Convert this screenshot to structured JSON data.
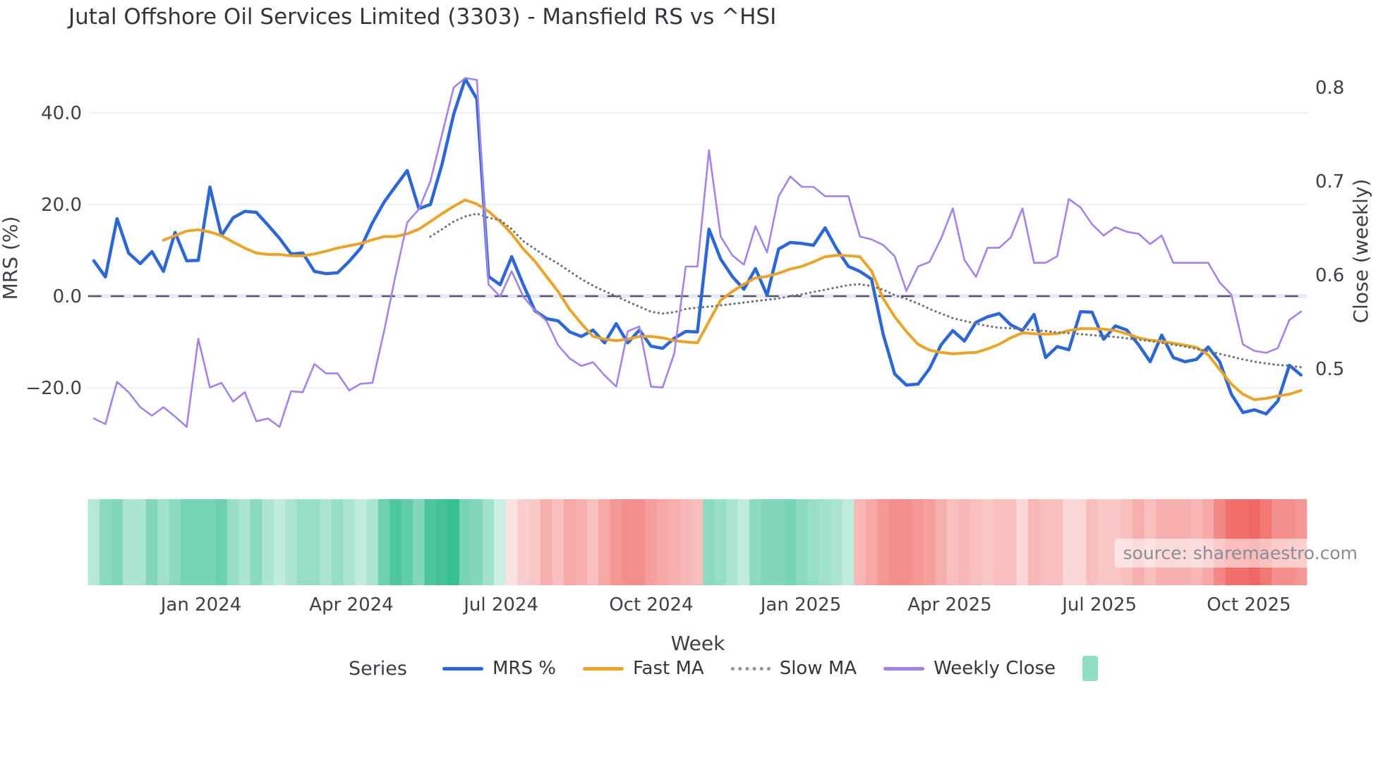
{
  "title": "Jutal Offshore Oil Services Limited (3303) - Mansfield RS vs ^HSI",
  "source": "source: sharemaestro.com",
  "colors": {
    "mrs": "#2c67d6",
    "fast_ma": "#eaa42c",
    "slow_ma": "#6f737b",
    "weekly_close": "#a583e6",
    "zero_dash": "#4a4f5c",
    "zero_band": "#e8eaf6",
    "grid": "#edeff6",
    "heat_green_dark": "#1fb586",
    "heat_green_light": "#eafaf4",
    "heat_red_dark": "#ee5350",
    "heat_red_light": "#fdeeee",
    "legend_patch": "#90ddc1"
  },
  "legend": {
    "series_label": "Series",
    "items": [
      {
        "label": "MRS %",
        "type": "line",
        "color": "#2c67d6"
      },
      {
        "label": "Fast MA",
        "type": "line",
        "color": "#eaa42c"
      },
      {
        "label": "Slow MA",
        "type": "dotted",
        "color": "#8d929b"
      },
      {
        "label": "Weekly Close",
        "type": "line",
        "color": "#a583e6"
      },
      {
        "label": "",
        "type": "patch",
        "color": "#90ddc1"
      }
    ]
  },
  "chart_data": {
    "type": "line",
    "title": "Jutal Offshore Oil Services Limited (3303) - Mansfield RS vs ^HSI",
    "xlabel": "Week",
    "n_weeks": 105,
    "x_axis": {
      "title": "Week",
      "tick_labels": [
        "Jan 2024",
        "Apr 2024",
        "Jul 2024",
        "Oct 2024",
        "Jan 2025",
        "Apr 2025",
        "Jul 2025",
        "Oct 2025"
      ],
      "tick_week_positions": [
        9.24,
        22.19,
        35.08,
        48.02,
        60.91,
        73.74,
        86.63,
        99.51
      ]
    },
    "left_axis": {
      "title": "MRS (%)",
      "tick_values": [
        40,
        20,
        0,
        -20
      ],
      "tick_labels": [
        "40.0",
        "20.0",
        "0.0",
        "−20.0"
      ],
      "zero_dashed_line": true,
      "range_hint": [
        -30,
        50
      ]
    },
    "right_axis": {
      "title": "Close (weekly)",
      "tick_values": [
        0.8,
        0.7,
        0.6,
        0.5
      ],
      "tick_labels": [
        "0.8",
        "0.7",
        "0.6",
        "0.5"
      ]
    },
    "series": [
      {
        "name": "MRS %",
        "axis": "left",
        "style": "solid",
        "color": "#2c67d6",
        "width": 4.5,
        "values": [
          7.7,
          4.2,
          16.9,
          9.4,
          7.1,
          9.7,
          5.4,
          13.9,
          7.7,
          7.8,
          23.8,
          13.2,
          17.1,
          18.5,
          18.3,
          15.5,
          12.6,
          9.2,
          9.4,
          5.4,
          4.9,
          5.1,
          7.6,
          10.5,
          16.0,
          20.5,
          24.0,
          27.4,
          19.1,
          20.0,
          28.8,
          39.7,
          47.4,
          43.0,
          4.3,
          2.5,
          8.6,
          2.5,
          -3.2,
          -4.9,
          -5.4,
          -7.8,
          -8.8,
          -7.4,
          -10.2,
          -6.0,
          -10.2,
          -7.4,
          -10.9,
          -11.4,
          -9.2,
          -7.7,
          -7.8,
          14.6,
          8.1,
          4.3,
          1.5,
          6.0,
          0.2,
          10.3,
          11.7,
          11.5,
          11.1,
          14.9,
          10.3,
          6.5,
          5.4,
          3.7,
          -8.3,
          -17.0,
          -19.4,
          -19.2,
          -15.8,
          -10.6,
          -7.5,
          -9.8,
          -5.7,
          -4.5,
          -3.8,
          -6.3,
          -7.5,
          -4.0,
          -13.4,
          -11.0,
          -11.7,
          -3.4,
          -3.5,
          -9.4,
          -6.5,
          -7.4,
          -10.6,
          -14.3,
          -8.5,
          -13.4,
          -14.3,
          -13.8,
          -11.1,
          -14.3,
          -21.4,
          -25.4,
          -24.8,
          -25.7,
          -22.9,
          -15.1,
          -17.2
        ]
      },
      {
        "name": "Fast MA",
        "axis": "left",
        "style": "solid",
        "color": "#eaa42c",
        "width": 4,
        "values": [
          null,
          null,
          null,
          null,
          null,
          null,
          12.2,
          13.2,
          14.2,
          14.5,
          14.0,
          13.2,
          11.8,
          10.5,
          9.4,
          9.1,
          9.1,
          8.8,
          8.8,
          9.2,
          9.8,
          10.5,
          11.0,
          11.5,
          12.3,
          13.0,
          13.0,
          13.6,
          14.6,
          16.3,
          18.0,
          19.6,
          21.0,
          20.1,
          18.5,
          16.3,
          13.6,
          10.3,
          7.6,
          4.3,
          1.0,
          -2.9,
          -6.0,
          -8.8,
          -9.4,
          -9.7,
          -9.4,
          -8.8,
          -8.8,
          -9.1,
          -9.7,
          -10.0,
          -10.2,
          -5.5,
          -0.9,
          1.0,
          2.6,
          4.0,
          4.3,
          5.0,
          5.9,
          6.5,
          7.5,
          8.6,
          8.9,
          8.8,
          8.6,
          5.5,
          -0.5,
          -4.5,
          -7.7,
          -10.5,
          -11.8,
          -12.3,
          -12.6,
          -12.4,
          -12.3,
          -11.5,
          -10.5,
          -9.1,
          -8.0,
          -8.2,
          -8.3,
          -8.2,
          -7.5,
          -7.1,
          -7.1,
          -7.2,
          -7.5,
          -8.2,
          -9.1,
          -9.6,
          -9.9,
          -10.3,
          -10.7,
          -11.2,
          -12.8,
          -16.0,
          -19.2,
          -21.4,
          -22.6,
          -22.3,
          -21.8,
          -21.4,
          -20.6
        ]
      },
      {
        "name": "Slow MA",
        "axis": "left",
        "style": "dotted",
        "color": "#6f737b",
        "width": 3.2,
        "values": [
          null,
          null,
          null,
          null,
          null,
          null,
          null,
          null,
          null,
          null,
          null,
          null,
          null,
          null,
          null,
          null,
          null,
          null,
          null,
          null,
          null,
          null,
          null,
          null,
          null,
          null,
          null,
          null,
          null,
          13.0,
          14.6,
          16.3,
          17.4,
          18.0,
          17.1,
          16.6,
          14.6,
          12.0,
          10.3,
          8.6,
          7.1,
          5.4,
          3.7,
          2.3,
          1.1,
          0.0,
          -1.2,
          -2.3,
          -3.4,
          -3.8,
          -3.5,
          -2.8,
          -2.5,
          -2.3,
          -2.0,
          -1.7,
          -1.4,
          -1.1,
          -0.8,
          -0.5,
          0.0,
          0.4,
          0.9,
          1.4,
          1.9,
          2.4,
          2.6,
          2.2,
          1.4,
          0.2,
          -0.6,
          -1.6,
          -2.8,
          -3.8,
          -4.8,
          -5.4,
          -6.0,
          -6.5,
          -6.9,
          -7.0,
          -7.2,
          -7.4,
          -7.6,
          -7.9,
          -8.1,
          -8.3,
          -8.5,
          -8.7,
          -8.9,
          -9.2,
          -9.5,
          -9.8,
          -10.2,
          -10.6,
          -11.0,
          -11.5,
          -12.0,
          -12.6,
          -13.2,
          -13.8,
          -14.3,
          -14.7,
          -15.0,
          -15.2,
          -15.5
        ]
      },
      {
        "name": "Weekly Close",
        "axis": "right",
        "style": "solid",
        "color": "#a583e6",
        "width": 2.6,
        "values": [
          0.447,
          0.441,
          0.486,
          0.475,
          0.459,
          0.45,
          0.459,
          0.449,
          0.438,
          0.532,
          0.48,
          0.485,
          0.465,
          0.475,
          0.444,
          0.447,
          0.438,
          0.476,
          0.475,
          0.505,
          0.495,
          0.495,
          0.477,
          0.484,
          0.485,
          0.54,
          0.6,
          0.656,
          0.67,
          0.7,
          0.75,
          0.8,
          0.81,
          0.808,
          0.59,
          0.577,
          0.604,
          0.577,
          0.562,
          0.551,
          0.525,
          0.511,
          0.503,
          0.507,
          0.493,
          0.481,
          0.54,
          0.545,
          0.481,
          0.48,
          0.516,
          0.609,
          0.609,
          0.733,
          0.641,
          0.621,
          0.611,
          0.652,
          0.624,
          0.684,
          0.705,
          0.694,
          0.694,
          0.684,
          0.684,
          0.684,
          0.641,
          0.638,
          0.632,
          0.62,
          0.583,
          0.609,
          0.614,
          0.639,
          0.671,
          0.616,
          0.598,
          0.629,
          0.629,
          0.64,
          0.671,
          0.613,
          0.613,
          0.62,
          0.681,
          0.672,
          0.654,
          0.642,
          0.651,
          0.646,
          0.644,
          0.633,
          0.642,
          0.613,
          0.613,
          0.613,
          0.613,
          0.592,
          0.579,
          0.526,
          0.519,
          0.517,
          0.522,
          0.552,
          0.561
        ]
      }
    ],
    "heatmap_strip": {
      "description": "weekly relative-strength color strip under chart",
      "cells": [
        [
          "g",
          0.25
        ],
        [
          "g",
          0.45
        ],
        [
          "g",
          0.5
        ],
        [
          "g",
          0.3
        ],
        [
          "g",
          0.3
        ],
        [
          "g",
          0.5
        ],
        [
          "g",
          0.35
        ],
        [
          "g",
          0.45
        ],
        [
          "g",
          0.55
        ],
        [
          "g",
          0.55
        ],
        [
          "g",
          0.55
        ],
        [
          "g",
          0.6
        ],
        [
          "g",
          0.4
        ],
        [
          "g",
          0.3
        ],
        [
          "g",
          0.45
        ],
        [
          "g",
          0.3
        ],
        [
          "g",
          0.2
        ],
        [
          "g",
          0.3
        ],
        [
          "g",
          0.4
        ],
        [
          "g",
          0.4
        ],
        [
          "g",
          0.3
        ],
        [
          "g",
          0.4
        ],
        [
          "g",
          0.3
        ],
        [
          "g",
          0.2
        ],
        [
          "g",
          0.3
        ],
        [
          "g",
          0.6
        ],
        [
          "g",
          0.75
        ],
        [
          "g",
          0.65
        ],
        [
          "g",
          0.5
        ],
        [
          "g",
          0.75
        ],
        [
          "g",
          0.8
        ],
        [
          "g",
          0.85
        ],
        [
          "g",
          0.55
        ],
        [
          "g",
          0.5
        ],
        [
          "g",
          0.35
        ],
        [
          "g",
          0.15
        ],
        [
          "r",
          0.08
        ],
        [
          "r",
          0.2
        ],
        [
          "r",
          0.25
        ],
        [
          "r",
          0.4
        ],
        [
          "r",
          0.3
        ],
        [
          "r",
          0.45
        ],
        [
          "r",
          0.4
        ],
        [
          "r",
          0.3
        ],
        [
          "r",
          0.45
        ],
        [
          "r",
          0.55
        ],
        [
          "r",
          0.6
        ],
        [
          "r",
          0.6
        ],
        [
          "r",
          0.5
        ],
        [
          "r",
          0.45
        ],
        [
          "r",
          0.4
        ],
        [
          "r",
          0.35
        ],
        [
          "r",
          0.3
        ],
        [
          "g",
          0.45
        ],
        [
          "g",
          0.4
        ],
        [
          "g",
          0.3
        ],
        [
          "g",
          0.2
        ],
        [
          "g",
          0.45
        ],
        [
          "g",
          0.5
        ],
        [
          "g",
          0.5
        ],
        [
          "g",
          0.55
        ],
        [
          "g",
          0.45
        ],
        [
          "g",
          0.4
        ],
        [
          "g",
          0.35
        ],
        [
          "g",
          0.3
        ],
        [
          "g",
          0.2
        ],
        [
          "r",
          0.35
        ],
        [
          "r",
          0.45
        ],
        [
          "r",
          0.55
        ],
        [
          "r",
          0.6
        ],
        [
          "r",
          0.6
        ],
        [
          "r",
          0.55
        ],
        [
          "r",
          0.5
        ],
        [
          "r",
          0.4
        ],
        [
          "r",
          0.3
        ],
        [
          "r",
          0.35
        ],
        [
          "r",
          0.3
        ],
        [
          "r",
          0.25
        ],
        [
          "r",
          0.3
        ],
        [
          "r",
          0.3
        ],
        [
          "r",
          0.15
        ],
        [
          "r",
          0.35
        ],
        [
          "r",
          0.3
        ],
        [
          "r",
          0.3
        ],
        [
          "r",
          0.15
        ],
        [
          "r",
          0.15
        ],
        [
          "r",
          0.3
        ],
        [
          "r",
          0.25
        ],
        [
          "r",
          0.25
        ],
        [
          "r",
          0.3
        ],
        [
          "r",
          0.4
        ],
        [
          "r",
          0.3
        ],
        [
          "r",
          0.4
        ],
        [
          "r",
          0.4
        ],
        [
          "r",
          0.4
        ],
        [
          "r",
          0.35
        ],
        [
          "r",
          0.45
        ],
        [
          "r",
          0.65
        ],
        [
          "r",
          0.8
        ],
        [
          "r",
          0.8
        ],
        [
          "r",
          0.85
        ],
        [
          "r",
          0.75
        ],
        [
          "r",
          0.6
        ],
        [
          "r",
          0.6
        ],
        [
          "r",
          0.55
        ]
      ]
    }
  }
}
